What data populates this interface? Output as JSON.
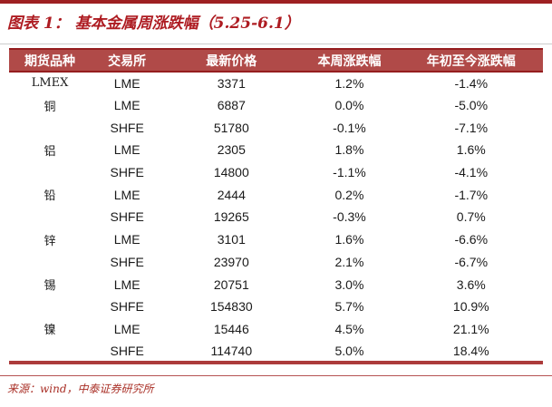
{
  "title": "图表 1： 基本金属周涨跌幅（5.25-6.1）",
  "table": {
    "headers": [
      "期货品种",
      "交易所",
      "最新价格",
      "本周涨跌幅",
      "年初至今涨跌幅"
    ],
    "rows": [
      [
        "LMEX",
        "LME",
        "3371",
        "1.2%",
        "-1.4%"
      ],
      [
        "铜",
        "LME",
        "6887",
        "0.0%",
        "-5.0%"
      ],
      [
        "",
        "SHFE",
        "51780",
        "-0.1%",
        "-7.1%"
      ],
      [
        "铝",
        "LME",
        "2305",
        "1.8%",
        "1.6%"
      ],
      [
        "",
        "SHFE",
        "14800",
        "-1.1%",
        "-4.1%"
      ],
      [
        "铅",
        "LME",
        "2444",
        "0.2%",
        "-1.7%"
      ],
      [
        "",
        "SHFE",
        "19265",
        "-0.3%",
        "0.7%"
      ],
      [
        "锌",
        "LME",
        "3101",
        "1.6%",
        "-6.6%"
      ],
      [
        "",
        "SHFE",
        "23970",
        "2.1%",
        "-6.7%"
      ],
      [
        "锡",
        "LME",
        "20751",
        "3.0%",
        "3.6%"
      ],
      [
        "",
        "SHFE",
        "154830",
        "5.7%",
        "10.9%"
      ],
      [
        "镍",
        "LME",
        "15446",
        "4.5%",
        "21.1%"
      ],
      [
        "",
        "SHFE",
        "114740",
        "5.0%",
        "18.4%"
      ]
    ]
  },
  "footer": {
    "source": "来源：wind，中泰证券研究所"
  },
  "colors": {
    "accent_bar": "#9E2022",
    "title_red": "#AE1C22",
    "header_bg": "#B04A48",
    "header_text": "#FFFFFF",
    "header_border": "#951D1F",
    "table_bottom_border": "#AC3B3B",
    "title_divider_gray": "#CCCCCC",
    "footer_rule_red": "#B65252",
    "source_text_red": "#A92F26",
    "body_text": "#1A1A1A"
  }
}
